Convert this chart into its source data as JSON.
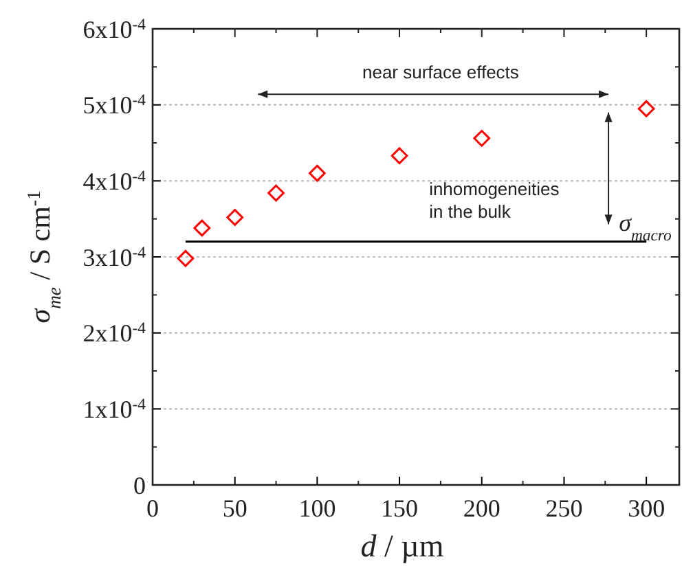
{
  "chart_data": {
    "type": "scatter",
    "xlabel": "d / µm",
    "ylabel": "σ$_{me}$ / S cm$^{-1}$",
    "xlim": [
      0,
      320
    ],
    "xticks": [
      0,
      50,
      100,
      150,
      200,
      250,
      300
    ],
    "ylim": [
      0,
      0.0006
    ],
    "yticks": [
      0,
      {
        "value": 0.0001,
        "label": "1x10$^{-4}$"
      },
      {
        "value": 0.0002,
        "label": "2x10$^{-4}$"
      },
      {
        "value": 0.0003,
        "label": "3x10$^{-4}$"
      },
      {
        "value": 0.0004,
        "label": "4x10$^{-4}$"
      },
      {
        "value": 0.0005,
        "label": "5x10$^{-4}$"
      },
      {
        "value": 0.0006,
        "label": "6x10$^{-4}$"
      }
    ],
    "grid": "y",
    "series": [
      {
        "marker": "diamond",
        "color": "#ff0000",
        "x": [
          20,
          30,
          50,
          75,
          100,
          150,
          200,
          300
        ],
        "values": [
          0.000298,
          0.000338,
          0.000352,
          0.000384,
          0.00041,
          0.000433,
          0.000456,
          0.000495
        ]
      },
      {
        "type": "line",
        "name": "σ$_{macro}$",
        "color": "#000000",
        "x": [
          20,
          300
        ],
        "values": [
          0.00032,
          0.00032
        ]
      }
    ],
    "annotations": [
      "near surface effects",
      "inhomogeneities in the bulk"
    ]
  }
}
